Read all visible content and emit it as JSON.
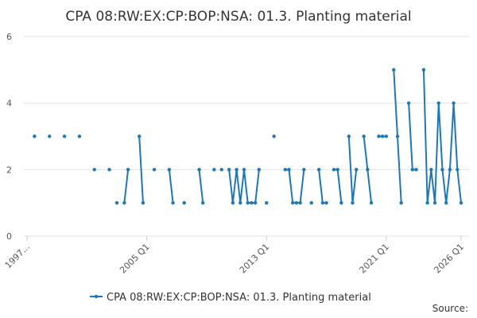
{
  "chart_data": {
    "type": "line",
    "title": "CPA 08:RW:EX:CP:BOP:NSA: 01.3. Planting material",
    "source": "Source:",
    "categories": [
      "1997...",
      null,
      null,
      null,
      null,
      null,
      null,
      null,
      null,
      null,
      null,
      null,
      null,
      null,
      null,
      null,
      null,
      null,
      null,
      null,
      null,
      null,
      null,
      null,
      null,
      null,
      null,
      null,
      null,
      null,
      null,
      null,
      "2005 Q1",
      null,
      null,
      null,
      null,
      null,
      null,
      null,
      null,
      null,
      null,
      null,
      null,
      null,
      null,
      null,
      null,
      null,
      null,
      null,
      null,
      null,
      null,
      null,
      null,
      null,
      null,
      null,
      null,
      null,
      null,
      null,
      "2013 Q1",
      null,
      null,
      null,
      null,
      null,
      null,
      null,
      null,
      null,
      null,
      null,
      null,
      null,
      null,
      null,
      null,
      null,
      null,
      null,
      null,
      null,
      null,
      null,
      null,
      null,
      null,
      null,
      null,
      null,
      null,
      null,
      "2021 Q1",
      null,
      null,
      null,
      null,
      null,
      null,
      null,
      null,
      null,
      null,
      null,
      null,
      null,
      null,
      null,
      null,
      null,
      null,
      null,
      "2026 Q1"
    ],
    "series": [
      {
        "name": "CPA 08:RW:EX:CP:BOP:NSA: 01.3. Planting material",
        "color": "#1f78b4",
        "values": [
          null,
          null,
          3,
          null,
          null,
          null,
          3,
          null,
          null,
          null,
          3,
          null,
          null,
          null,
          3,
          null,
          null,
          null,
          2,
          null,
          null,
          null,
          2,
          null,
          1,
          null,
          1,
          2,
          null,
          null,
          3,
          1,
          null,
          null,
          2,
          null,
          null,
          null,
          2,
          1,
          null,
          null,
          1,
          null,
          null,
          null,
          2,
          1,
          null,
          null,
          2,
          null,
          2,
          null,
          2,
          1,
          2,
          1,
          2,
          1,
          1,
          1,
          2,
          null,
          1,
          null,
          3,
          null,
          null,
          2,
          2,
          1,
          1,
          1,
          2,
          null,
          1,
          null,
          2,
          1,
          1,
          null,
          2,
          2,
          1,
          null,
          3,
          1,
          2,
          null,
          3,
          2,
          1,
          null,
          3,
          3,
          3,
          null,
          5,
          3,
          1,
          null,
          4,
          2,
          2,
          null,
          5,
          1,
          2,
          1,
          4,
          2,
          1,
          2,
          4,
          2,
          1
        ]
      }
    ],
    "ylim": [
      0,
      6
    ],
    "yticks": [
      0,
      2,
      4,
      6
    ],
    "grid": true
  }
}
